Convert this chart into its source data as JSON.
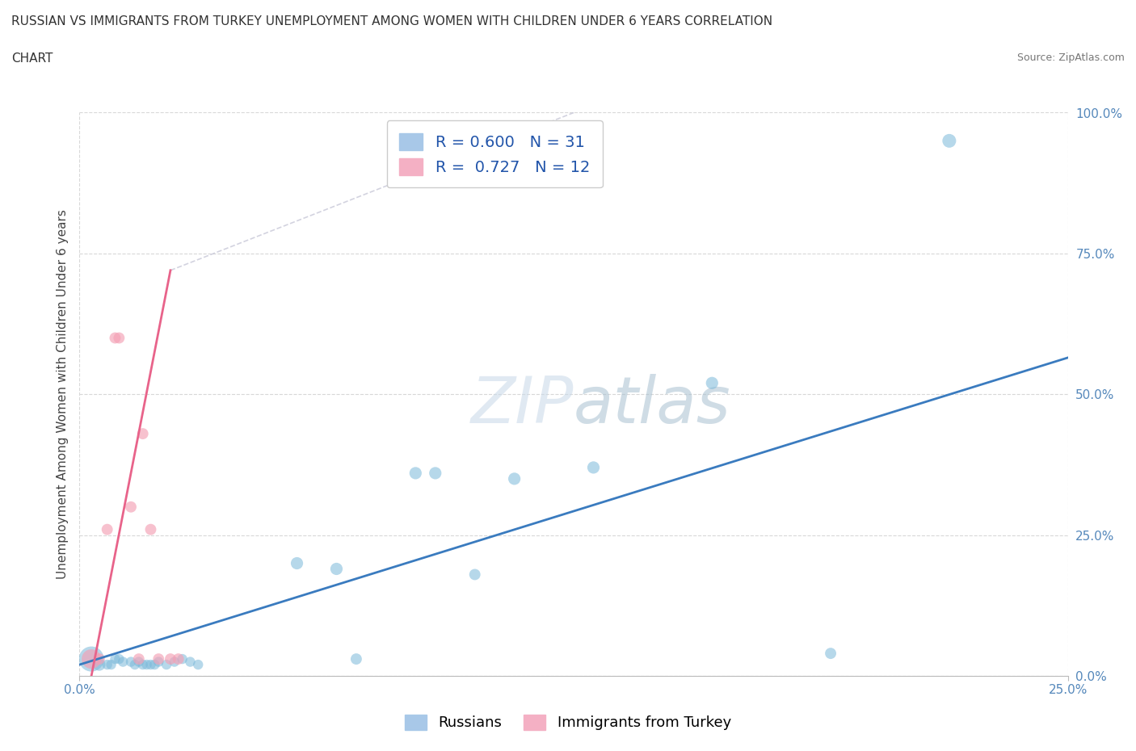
{
  "title_line1": "RUSSIAN VS IMMIGRANTS FROM TURKEY UNEMPLOYMENT AMONG WOMEN WITH CHILDREN UNDER 6 YEARS CORRELATION",
  "title_line2": "CHART",
  "source": "Source: ZipAtlas.com",
  "ylabel": "Unemployment Among Women with Children Under 6 years",
  "xlim": [
    0.0,
    0.25
  ],
  "ylim": [
    0.0,
    1.0
  ],
  "ytick_vals": [
    0.0,
    0.25,
    0.5,
    0.75,
    1.0
  ],
  "xtick_vals": [
    0.0,
    0.25
  ],
  "watermark_text": "ZIPatlas",
  "blue_color": "#7ab8d9",
  "pink_color": "#f4a0b5",
  "trend_blue_color": "#3a7bbf",
  "trend_pink_color": "#e8638a",
  "trend_pink_dashed_color": "#c8c8d8",
  "background_color": "#ffffff",
  "grid_color": "#d8d8d8",
  "legend_blue_label": "R = 0.600   N = 31",
  "legend_pink_label": "R =  0.727   N = 12",
  "bottom_legend_blue": "Russians",
  "bottom_legend_pink": "Immigrants from Turkey",
  "russians_x": [
    0.003,
    0.005,
    0.007,
    0.008,
    0.009,
    0.01,
    0.011,
    0.013,
    0.014,
    0.015,
    0.016,
    0.017,
    0.018,
    0.019,
    0.02,
    0.022,
    0.024,
    0.026,
    0.028,
    0.03,
    0.055,
    0.065,
    0.07,
    0.085,
    0.09,
    0.1,
    0.11,
    0.13,
    0.16,
    0.19,
    0.22
  ],
  "russians_y": [
    0.03,
    0.02,
    0.02,
    0.02,
    0.03,
    0.03,
    0.025,
    0.025,
    0.02,
    0.025,
    0.02,
    0.02,
    0.02,
    0.02,
    0.025,
    0.02,
    0.025,
    0.03,
    0.025,
    0.02,
    0.2,
    0.19,
    0.03,
    0.36,
    0.36,
    0.18,
    0.35,
    0.37,
    0.52,
    0.04,
    0.95
  ],
  "russians_size": [
    500,
    120,
    80,
    80,
    80,
    80,
    80,
    80,
    80,
    80,
    80,
    80,
    80,
    80,
    80,
    80,
    80,
    80,
    80,
    80,
    120,
    120,
    100,
    120,
    120,
    100,
    120,
    120,
    120,
    100,
    150
  ],
  "turkey_x": [
    0.003,
    0.005,
    0.007,
    0.009,
    0.01,
    0.013,
    0.015,
    0.016,
    0.018,
    0.02,
    0.023,
    0.025
  ],
  "turkey_y": [
    0.03,
    0.03,
    0.26,
    0.6,
    0.6,
    0.3,
    0.03,
    0.43,
    0.26,
    0.03,
    0.03,
    0.03
  ],
  "turkey_size": [
    300,
    100,
    100,
    100,
    100,
    100,
    100,
    100,
    100,
    100,
    100,
    100
  ],
  "trend_blue_x0": 0.0,
  "trend_blue_y0": 0.02,
  "trend_blue_x1": 0.25,
  "trend_blue_y1": 0.565,
  "trend_pink_x0": 0.003,
  "trend_pink_y0": 0.0,
  "trend_pink_x1": 0.023,
  "trend_pink_y1": 0.72,
  "trend_pink_dashed_x0": 0.023,
  "trend_pink_dashed_y0": 0.72,
  "trend_pink_dashed_x1": 0.125,
  "trend_pink_dashed_y1": 1.0
}
